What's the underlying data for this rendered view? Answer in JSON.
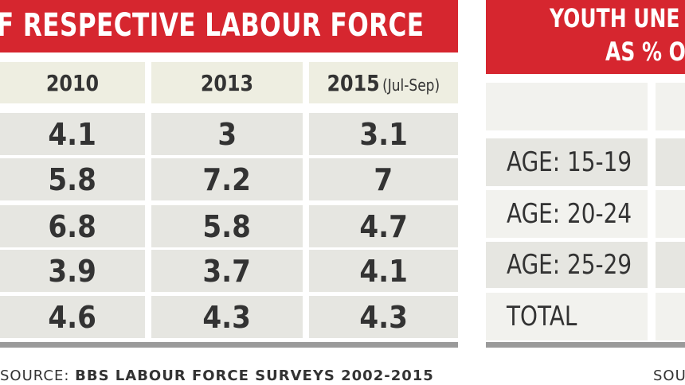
{
  "left_table": {
    "title": "OF RESPECTIVE LABOUR FORCE",
    "headers": [
      "2010",
      "2013",
      "2015"
    ],
    "header_note": "(Jul-Sep)",
    "rows": [
      [
        "4.1",
        "3",
        "3.1"
      ],
      [
        "5.8",
        "7.2",
        "7"
      ],
      [
        "6.8",
        "5.8",
        "4.7"
      ],
      [
        "3.9",
        "3.7",
        "4.1"
      ],
      [
        "4.6",
        "4.3",
        "4.3"
      ]
    ],
    "source_label": "SOURCE:",
    "source_text": "BBS LABOUR FORCE SURVEYS 2002-2015"
  },
  "right_table": {
    "title_line1": "YOUTH UNE",
    "title_line2": "AS % O",
    "row_labels": [
      "AGE: 15-19",
      "AGE: 20-24",
      "AGE: 25-29",
      "TOTAL"
    ],
    "source_fragment": "SOU"
  },
  "colors": {
    "banner": "#d6262f",
    "cell": "#e6e6e1",
    "header_cell": "#eeeee1",
    "rule": "#9a9a9a"
  },
  "chart_data": [
    {
      "type": "table",
      "title": "OF RESPECTIVE LABOUR FORCE",
      "columns": [
        "2010",
        "2013",
        "2015 (Jul-Sep)"
      ],
      "rows": [
        [
          4.1,
          3,
          3.1
        ],
        [
          5.8,
          7.2,
          7
        ],
        [
          6.8,
          5.8,
          4.7
        ],
        [
          3.9,
          3.7,
          4.1
        ],
        [
          4.6,
          4.3,
          4.3
        ]
      ],
      "source": "SOURCE: BBS LABOUR FORCE SURVEYS 2002-2015"
    },
    {
      "type": "table",
      "title": "YOUTH UNE… AS % O…",
      "row_labels": [
        "AGE: 15-19",
        "AGE: 20-24",
        "AGE: 25-29",
        "TOTAL"
      ]
    }
  ]
}
